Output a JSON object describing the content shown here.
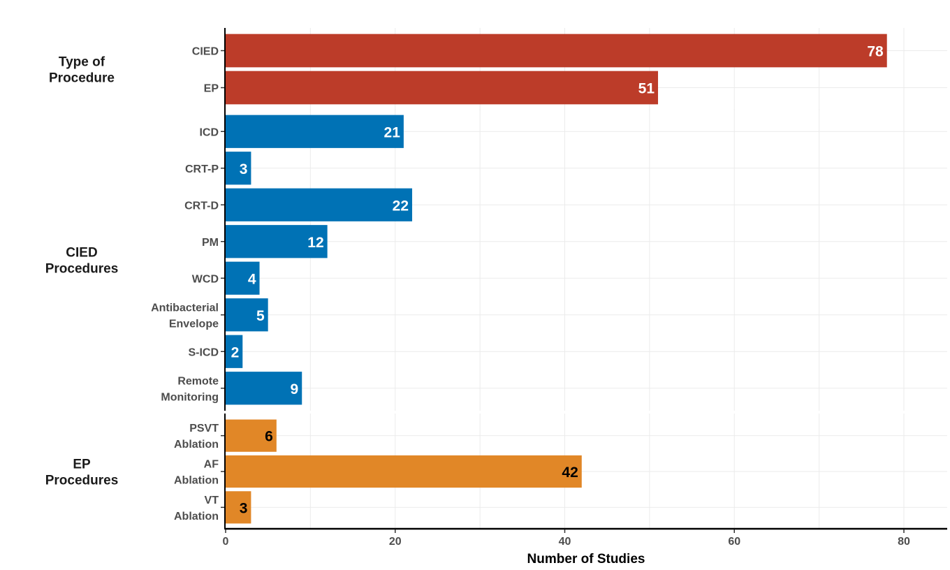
{
  "chart_data": {
    "type": "bar",
    "orientation": "horizontal",
    "xlabel": "Number of Studies",
    "xlim": [
      0,
      85
    ],
    "xticks": [
      0,
      20,
      40,
      60,
      80
    ],
    "grid": true,
    "panels": [
      {
        "title_lines": [
          "Type of",
          "Procedure"
        ],
        "color": "#BC3C29",
        "label_color": "#ffffff",
        "categories": [
          [
            "CIED"
          ],
          [
            "EP"
          ]
        ],
        "values": [
          78,
          51
        ]
      },
      {
        "title_lines": [
          "CIED",
          "Procedures"
        ],
        "color": "#0072B5",
        "label_color": "#ffffff",
        "categories": [
          [
            "ICD"
          ],
          [
            "CRT-P"
          ],
          [
            "CRT-D"
          ],
          [
            "PM"
          ],
          [
            "WCD"
          ],
          [
            "Antibacterial",
            "Envelope"
          ],
          [
            "S-ICD"
          ],
          [
            "Remote",
            "Monitoring"
          ]
        ],
        "values": [
          21,
          3,
          22,
          12,
          4,
          5,
          2,
          9
        ]
      },
      {
        "title_lines": [
          "EP",
          "Procedures"
        ],
        "color": "#E18727",
        "label_color": "#000000",
        "categories": [
          [
            "PSVT",
            "Ablation"
          ],
          [
            "AF",
            "Ablation"
          ],
          [
            "VT",
            "Ablation"
          ]
        ],
        "values": [
          6,
          42,
          3
        ]
      }
    ]
  }
}
